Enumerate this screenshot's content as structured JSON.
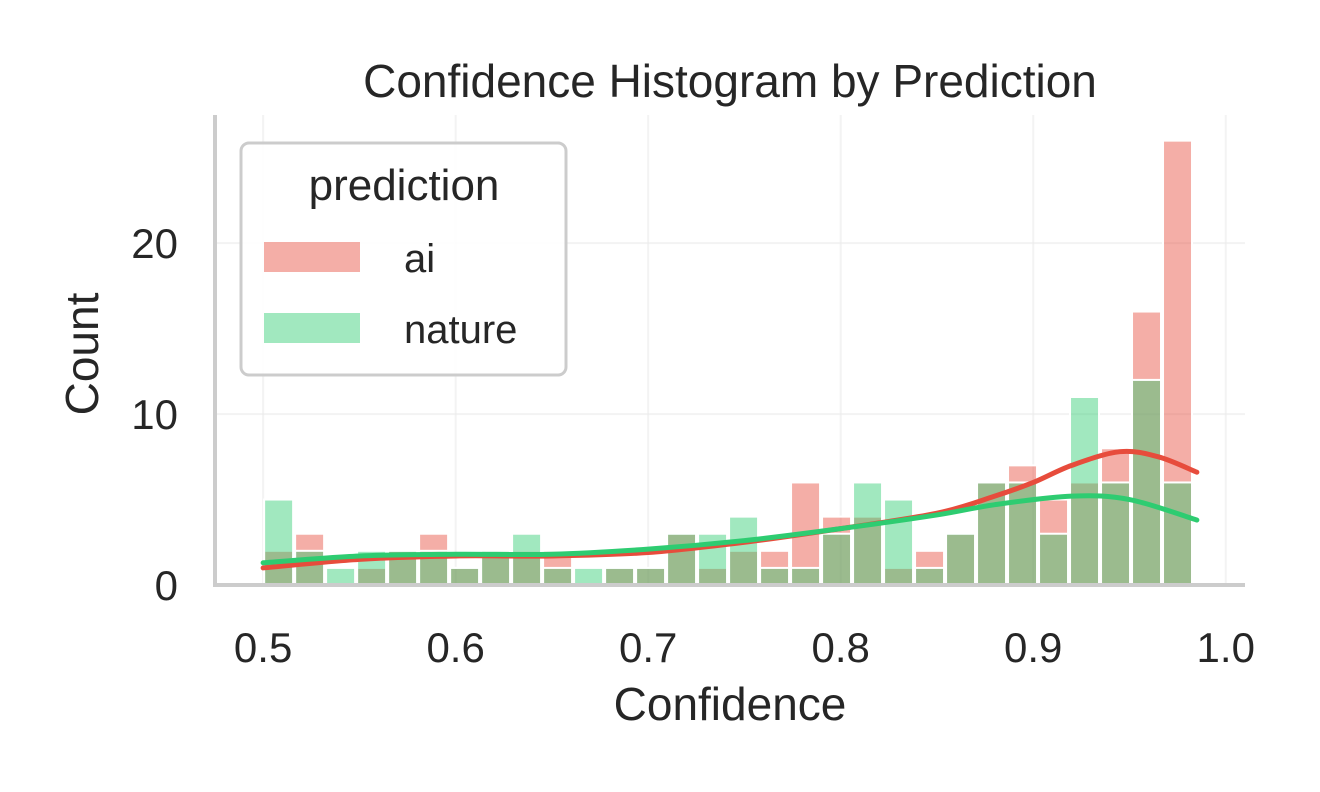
{
  "chart_data": {
    "type": "histogram",
    "title": "Confidence Histogram by Prediction",
    "xlabel": "Confidence",
    "ylabel": "Count",
    "xlim": [
      0.475,
      1.01
    ],
    "ylim": [
      0,
      27.5
    ],
    "xticks": [
      "0.5",
      "0.6",
      "0.7",
      "0.8",
      "0.9",
      "1.0"
    ],
    "yticks": [
      "0",
      "10",
      "20"
    ],
    "grid": true,
    "legend": {
      "title": "prediction",
      "position": "upper-left"
    },
    "bins": {
      "start": 0.5,
      "width": 0.0161
    },
    "series": [
      {
        "name": "ai",
        "color": "#e74c3c",
        "counts": [
          2,
          3,
          0,
          1,
          2,
          3,
          1,
          2,
          2,
          2,
          0,
          1,
          1,
          3,
          1,
          2,
          2,
          6,
          4,
          4,
          1,
          2,
          3,
          6,
          7,
          5,
          6,
          8,
          16,
          26
        ],
        "kde": [
          [
            0.5,
            1.0
          ],
          [
            0.55,
            1.5
          ],
          [
            0.6,
            1.7
          ],
          [
            0.65,
            1.7
          ],
          [
            0.7,
            1.9
          ],
          [
            0.75,
            2.5
          ],
          [
            0.8,
            3.3
          ],
          [
            0.85,
            4.2
          ],
          [
            0.88,
            5.2
          ],
          [
            0.9,
            6.0
          ],
          [
            0.92,
            7.0
          ],
          [
            0.945,
            7.8
          ],
          [
            0.965,
            7.5
          ],
          [
            0.985,
            6.6
          ]
        ]
      },
      {
        "name": "nature",
        "color": "#2ecc71",
        "counts": [
          5,
          2,
          1,
          2,
          2,
          2,
          1,
          2,
          3,
          1,
          1,
          1,
          1,
          3,
          3,
          4,
          1,
          1,
          3,
          6,
          5,
          1,
          3,
          6,
          6,
          3,
          11,
          6,
          12,
          6
        ],
        "kde": [
          [
            0.5,
            1.3
          ],
          [
            0.55,
            1.7
          ],
          [
            0.6,
            1.8
          ],
          [
            0.65,
            1.8
          ],
          [
            0.7,
            2.1
          ],
          [
            0.75,
            2.6
          ],
          [
            0.8,
            3.3
          ],
          [
            0.85,
            4.1
          ],
          [
            0.88,
            4.7
          ],
          [
            0.92,
            5.2
          ],
          [
            0.95,
            5.0
          ],
          [
            0.985,
            3.8
          ]
        ]
      }
    ]
  }
}
